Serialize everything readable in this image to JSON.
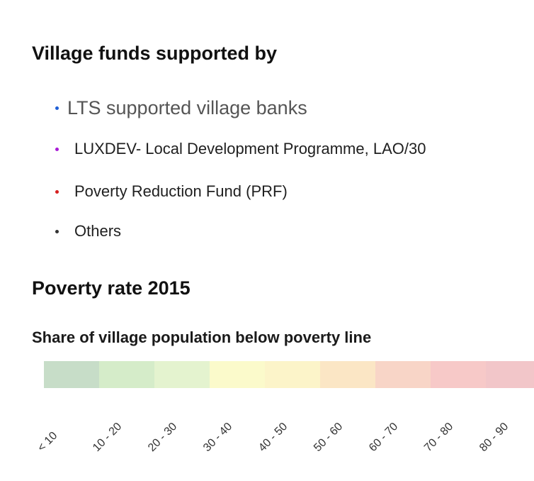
{
  "funds": {
    "title": "Village funds supported by",
    "items": [
      {
        "label": "LTS supported village banks",
        "color": "#1f5fd6"
      },
      {
        "label": "LUXDEV- Local Development Programme, LAO/30",
        "color": "#a81ad6"
      },
      {
        "label": "Poverty Reduction Fund (PRF)",
        "color": "#d62020"
      },
      {
        "label": "Others",
        "color": "#333333"
      }
    ]
  },
  "poverty": {
    "title": "Poverty rate 2015",
    "subtitle": "Share of village population below poverty line",
    "classes": [
      {
        "label": "< 10",
        "color": "#c7ddc8"
      },
      {
        "label": "10 - 20",
        "color": "#d5ecc9"
      },
      {
        "label": "20 - 30",
        "color": "#e4f3cf"
      },
      {
        "label": "30 - 40",
        "color": "#fbfacb"
      },
      {
        "label": "40 - 50",
        "color": "#fcf4c9"
      },
      {
        "label": "50 - 60",
        "color": "#fbe6c5"
      },
      {
        "label": "60 - 70",
        "color": "#f8d5c7"
      },
      {
        "label": "70 - 80",
        "color": "#f7c9c8"
      },
      {
        "label": "80 - 90",
        "color": "#f2c6c9"
      }
    ]
  }
}
